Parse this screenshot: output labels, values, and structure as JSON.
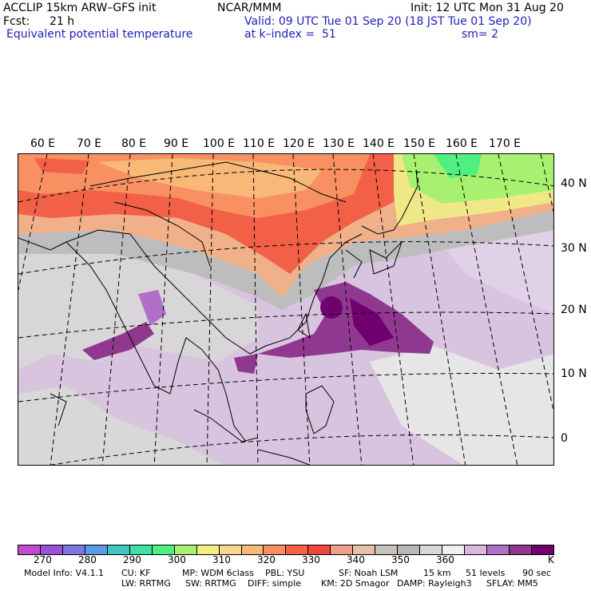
{
  "header": {
    "model_line": "ACCLIP 15km ARW–GFS init",
    "center": "NCAR/MMM",
    "init": "Init: 12 UTC Mon 31 Aug 20",
    "fcst_label": "Fcst:",
    "fcst_value": "21 h",
    "valid": "Valid: 09 UTC Tue 01 Sep 20 (18 JST Tue 01 Sep 20)",
    "field": "Equivalent potential temperature",
    "level": "at k–index =  51",
    "smooth": "sm= 2"
  },
  "map": {
    "lon_labels": [
      "60 E",
      "70 E",
      "80 E",
      "90 E",
      "100 E",
      "110 E",
      "120 E",
      "130 E",
      "140 E",
      "150 E",
      "160 E",
      "170 E"
    ],
    "lat_labels": [
      "40 N",
      "30 N",
      "20 N",
      "10 N",
      "0"
    ]
  },
  "colorbar": {
    "colors": [
      "#c04bc8",
      "#9a50d8",
      "#7c78e0",
      "#5a9ce6",
      "#3ec8c0",
      "#40e0a0",
      "#50f080",
      "#a8f070",
      "#f0f080",
      "#f8d890",
      "#f8b878",
      "#f89060",
      "#f86048",
      "#f04838",
      "#f0a088",
      "#e8c0a8",
      "#c8c0bc",
      "#b8b8b8",
      "#d8d8d8",
      "#f0f0f0",
      "#d8b8e0",
      "#b070c8",
      "#903890",
      "#700070"
    ],
    "ticks": [
      "270",
      "280",
      "290",
      "300",
      "310",
      "320",
      "330",
      "340",
      "350",
      "360"
    ],
    "unit": "K"
  },
  "footer": {
    "line1": [
      "Model Info: V4.1.1",
      "CU: KF",
      "MP: WDM 6class",
      "PBL: YSU",
      "SF: Noah LSM",
      "15 km",
      "51 levels",
      "90 sec"
    ],
    "line2": [
      "LW: RRTMG",
      "SW: RRTMG",
      "DIFF: simple",
      "KM: 2D Smagor",
      "DAMP: Rayleigh3",
      "SFLAY: MM5"
    ]
  }
}
